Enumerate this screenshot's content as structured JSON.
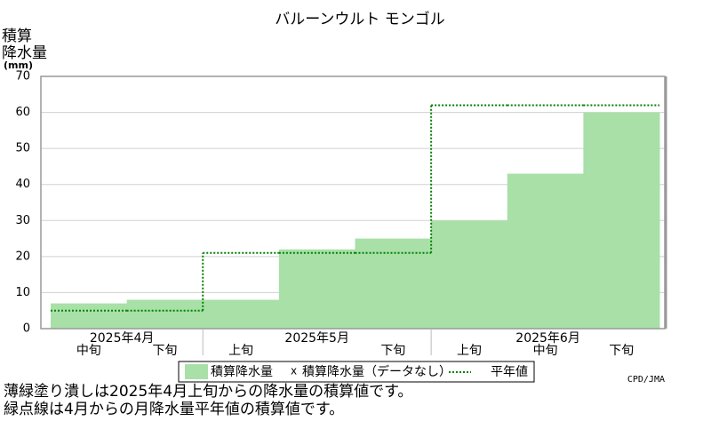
{
  "chart_data": {
    "type": "step_bar",
    "title": "バルーンウルト モンゴル",
    "y_label_lines": [
      "積算",
      "降水量",
      "(mm)"
    ],
    "month_labels": [
      "2025年4月",
      "2025年5月",
      "2025年6月"
    ],
    "categories": [
      "中旬",
      "下旬",
      "上旬",
      null,
      "下旬",
      "上旬",
      "中旬",
      "下旬"
    ],
    "series": [
      {
        "name": "積算降水量",
        "color": "#a8e0a8",
        "values": [
          7,
          8,
          8,
          22,
          25,
          30,
          43,
          60
        ]
      },
      {
        "name": "積算降水量（データなし）",
        "color": "#000000",
        "values": [
          null,
          null,
          null,
          null,
          null,
          null,
          null,
          null
        ]
      },
      {
        "name": "平年値",
        "color": "#008000",
        "values": [
          5,
          5,
          21,
          21,
          21,
          62,
          62,
          62
        ]
      }
    ],
    "ylim": [
      0,
      70
    ],
    "yticks": [
      0,
      10,
      20,
      30,
      40,
      50,
      60,
      70
    ],
    "grid": true,
    "credit": "CPD/JMA",
    "notes": [
      "薄緑塗り潰しは2025年4月上旬からの降水量の積算値です。",
      "緑点線は4月からの月降水量平年値の積算値です。"
    ]
  }
}
